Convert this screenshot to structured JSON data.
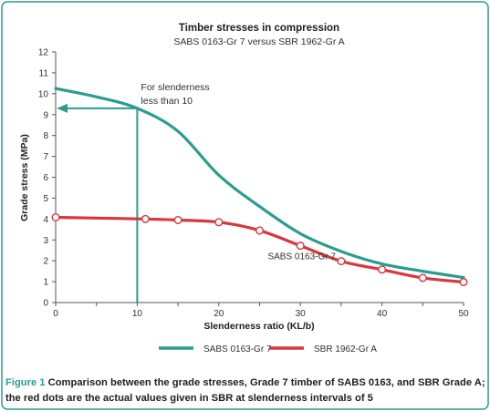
{
  "chart_data": {
    "type": "line",
    "title": "Timber stresses in compression",
    "subtitle": "SABS 0163-Gr 7 versus SBR 1962-Gr A",
    "xlabel": "Slenderness ratio (KL/b)",
    "ylabel": "Grade stress (MPa)",
    "xlim": [
      0,
      50
    ],
    "ylim": [
      0,
      12
    ],
    "xticks": [
      0,
      10,
      20,
      30,
      40,
      50
    ],
    "yticks": [
      0,
      1,
      2,
      3,
      4,
      5,
      6,
      7,
      8,
      9,
      10,
      11,
      12
    ],
    "grid": false,
    "legend_position": "bottom",
    "series": [
      {
        "name": "SABS 0163-Gr 7",
        "color": "#2a9d8f",
        "x": [
          0,
          5,
          10,
          15,
          20,
          25,
          30,
          35,
          40,
          45,
          50
        ],
        "y": [
          10.25,
          9.85,
          9.3,
          8.2,
          6.1,
          4.6,
          3.3,
          2.45,
          1.85,
          1.5,
          1.2
        ]
      },
      {
        "name": "SBR 1962-Gr A",
        "color": "#d9363e",
        "x": [
          0,
          11,
          15,
          20,
          25,
          30,
          35,
          40,
          45,
          50
        ],
        "y": [
          4.08,
          4.0,
          3.95,
          3.85,
          3.45,
          2.72,
          1.98,
          1.58,
          1.18,
          0.98
        ],
        "markers_x": [
          0,
          11,
          15,
          20,
          25,
          30,
          35,
          40,
          45,
          50
        ]
      }
    ],
    "annotations": [
      {
        "text_lines": [
          "For slenderness",
          "less than 10"
        ],
        "x": 10,
        "y": 9.3
      },
      {
        "text": "SABS 0163-Gr 7",
        "x": 26,
        "y": 2.2
      }
    ]
  },
  "caption": {
    "figure_label": "Figure 1",
    "line1": " Comparison between the grade stresses, Grade 7 timber of SABS 0163, and SBR Grade A;",
    "line2": "the red dots are the actual values given in SBR at slenderness intervals of 5"
  },
  "colors": {
    "frame": "#2a9d8f",
    "teal": "#2a9d8f",
    "red": "#d9363e",
    "axis": "#555555"
  }
}
